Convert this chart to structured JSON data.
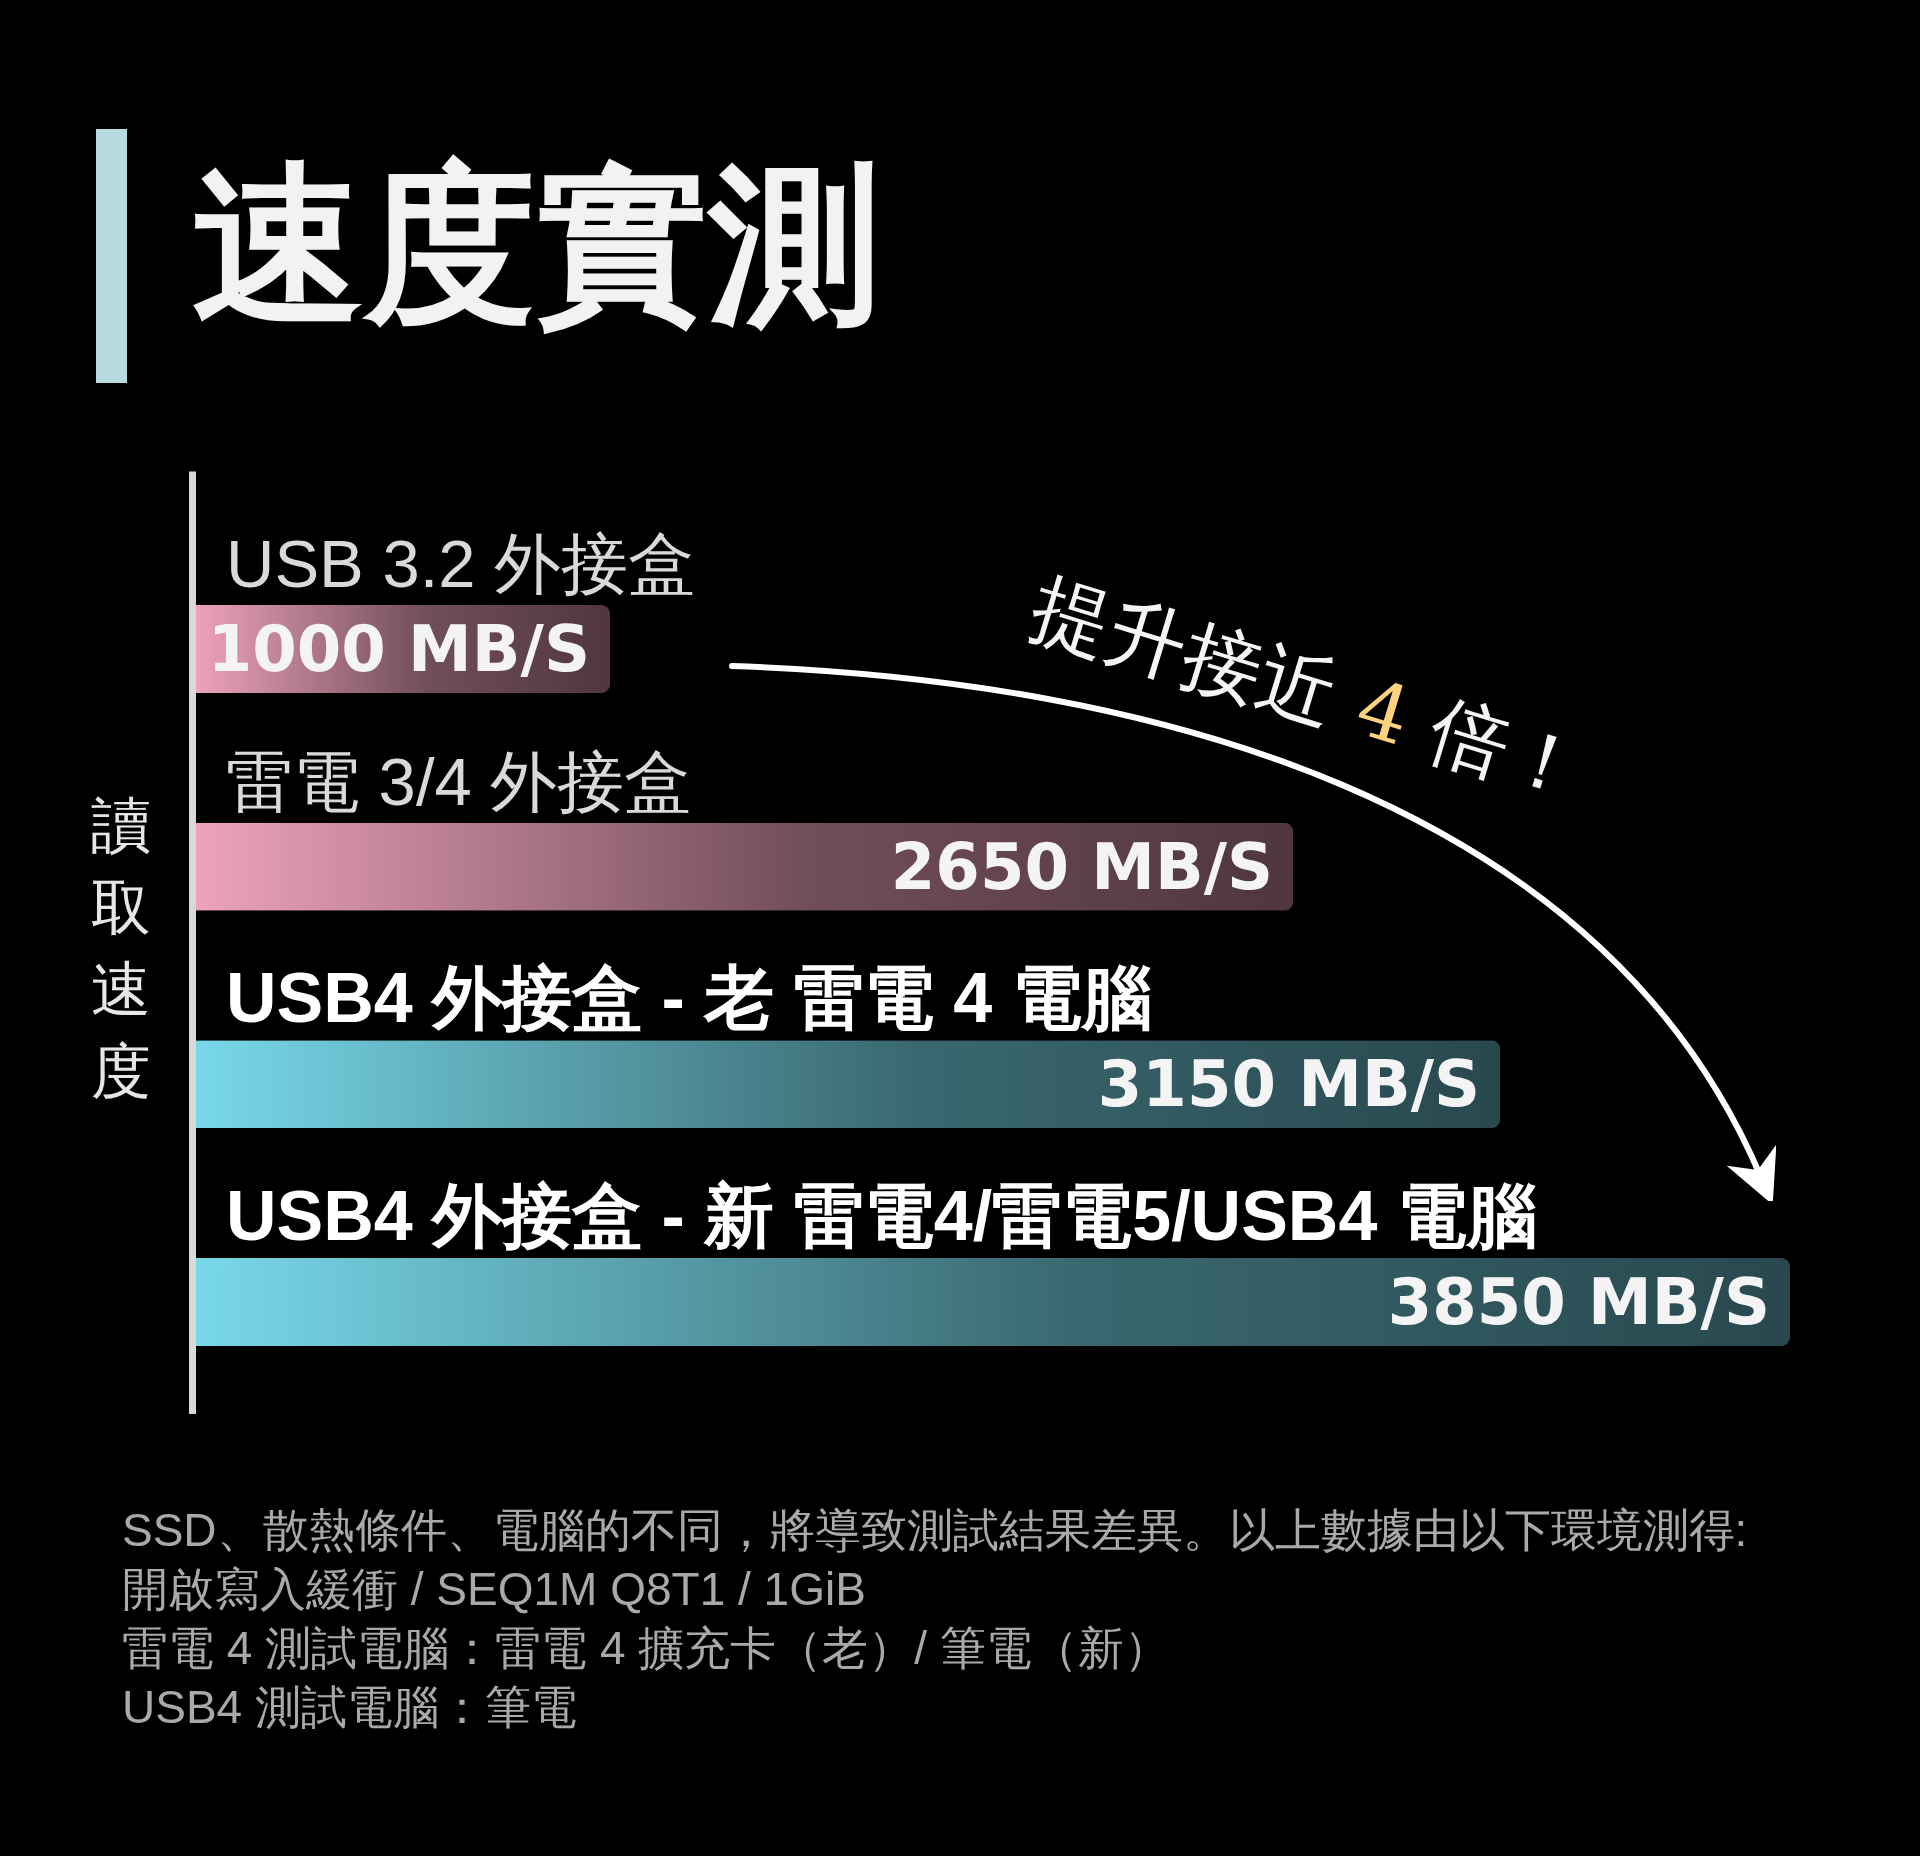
{
  "chart_data": {
    "type": "bar",
    "orientation": "horizontal",
    "title": "速度實測",
    "ylabel": "讀取速度",
    "categories": [
      "USB 3.2 外接盒",
      "雷電 3/4 外接盒",
      "USB4 外接盒 - 老 雷電 4 電腦",
      "USB4 外接盒 - 新 雷電4/雷電5/USB4 電腦"
    ],
    "values": [
      1000,
      2650,
      3150,
      3850
    ],
    "colors": [
      "#9e6c7e",
      "#9e6c7e",
      "#50909b",
      "#50909b"
    ],
    "value_labels": [
      "1000 MB/S",
      "2650 MB/S",
      "3150 MB/S",
      "3850 MB/S"
    ],
    "xlim": [
      0,
      3850
    ],
    "annotations": [
      "提升接近 4 倍！",
      "SSD、散熱條件、電腦的不同，將導致測試結果差異。以上數據由以下環境測得:",
      "開啟寫入緩衝 / SEQ1M Q8T1 / 1GiB",
      "雷電 4 測試電腦：雷電 4 擴充卡（老）/ 筆電（新）",
      "USB4 測試電腦：筆電"
    ]
  }
}
